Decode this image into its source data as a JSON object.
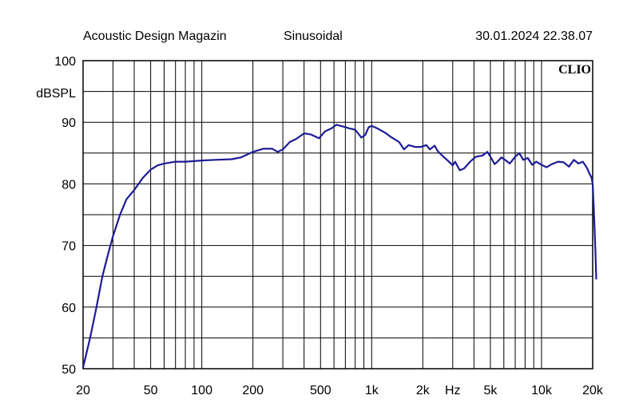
{
  "header": {
    "source": "Acoustic Design Magazin",
    "mode": "Sinusoidal",
    "datetime": "30.01.2024 22.38.07"
  },
  "brand": "CLIO",
  "chart_data": {
    "type": "line",
    "title": "",
    "xlabel": "Hz",
    "ylabel": "dBSPL",
    "xscale": "log",
    "xlim": [
      20,
      20000
    ],
    "ylim": [
      50,
      100
    ],
    "grid": true,
    "x_tick_labels": [
      {
        "value": 20,
        "label": "20"
      },
      {
        "value": 50,
        "label": "50"
      },
      {
        "value": 100,
        "label": "100"
      },
      {
        "value": 200,
        "label": "200"
      },
      {
        "value": 500,
        "label": "500"
      },
      {
        "value": 1000,
        "label": "1k"
      },
      {
        "value": 2000,
        "label": "2k"
      },
      {
        "value": 5000,
        "label": "5k"
      },
      {
        "value": 10000,
        "label": "10k"
      },
      {
        "value": 20000,
        "label": "20k"
      }
    ],
    "y_tick_labels": [
      {
        "value": 100,
        "label": "100"
      },
      {
        "value": 90,
        "label": "90"
      },
      {
        "value": 80,
        "label": "80"
      },
      {
        "value": 70,
        "label": "70"
      },
      {
        "value": 60,
        "label": "60"
      },
      {
        "value": 50,
        "label": "50"
      }
    ],
    "series": [
      {
        "color": "#1c1c96",
        "points": [
          [
            20,
            50.2
          ],
          [
            22,
            55
          ],
          [
            24,
            60
          ],
          [
            26,
            65
          ],
          [
            28,
            68.5
          ],
          [
            30,
            71.5
          ],
          [
            33,
            75
          ],
          [
            36,
            77.5
          ],
          [
            40,
            79
          ],
          [
            45,
            81
          ],
          [
            50,
            82.3
          ],
          [
            55,
            83
          ],
          [
            60,
            83.3
          ],
          [
            70,
            83.6
          ],
          [
            80,
            83.6
          ],
          [
            100,
            83.8
          ],
          [
            120,
            83.9
          ],
          [
            150,
            84
          ],
          [
            170,
            84.3
          ],
          [
            200,
            85.2
          ],
          [
            230,
            85.7
          ],
          [
            260,
            85.7
          ],
          [
            280,
            85.2
          ],
          [
            300,
            85.6
          ],
          [
            330,
            86.8
          ],
          [
            360,
            87.3
          ],
          [
            400,
            88.2
          ],
          [
            440,
            88
          ],
          [
            490,
            87.4
          ],
          [
            530,
            88.5
          ],
          [
            580,
            89
          ],
          [
            620,
            89.6
          ],
          [
            680,
            89.3
          ],
          [
            740,
            89
          ],
          [
            800,
            88.8
          ],
          [
            870,
            87.5
          ],
          [
            920,
            88
          ],
          [
            960,
            89.2
          ],
          [
            1000,
            89.4
          ],
          [
            1080,
            89
          ],
          [
            1200,
            88.3
          ],
          [
            1300,
            87.6
          ],
          [
            1450,
            86.8
          ],
          [
            1550,
            85.6
          ],
          [
            1650,
            86.3
          ],
          [
            1800,
            86
          ],
          [
            1950,
            86
          ],
          [
            2100,
            86.3
          ],
          [
            2200,
            85.6
          ],
          [
            2350,
            86.2
          ],
          [
            2450,
            85.3
          ],
          [
            2600,
            84.6
          ],
          [
            2800,
            83.8
          ],
          [
            3000,
            83
          ],
          [
            3100,
            83.6
          ],
          [
            3300,
            82.2
          ],
          [
            3500,
            82.5
          ],
          [
            3800,
            83.6
          ],
          [
            4100,
            84.4
          ],
          [
            4500,
            84.6
          ],
          [
            4800,
            85.2
          ],
          [
            5000,
            84.4
          ],
          [
            5300,
            83.2
          ],
          [
            5500,
            83.6
          ],
          [
            5800,
            84.3
          ],
          [
            6100,
            83.9
          ],
          [
            6500,
            83.3
          ],
          [
            7000,
            84.4
          ],
          [
            7400,
            85
          ],
          [
            7800,
            83.9
          ],
          [
            8300,
            84.2
          ],
          [
            8800,
            83.1
          ],
          [
            9300,
            83.6
          ],
          [
            10000,
            83.1
          ],
          [
            10700,
            82.7
          ],
          [
            11500,
            83.2
          ],
          [
            12500,
            83.6
          ],
          [
            13500,
            83.5
          ],
          [
            14500,
            82.8
          ],
          [
            15500,
            83.9
          ],
          [
            16500,
            83.3
          ],
          [
            17500,
            83.6
          ],
          [
            18500,
            82.6
          ],
          [
            19200,
            81.6
          ],
          [
            19700,
            81
          ],
          [
            20000,
            80
          ],
          [
            20300,
            76
          ],
          [
            20700,
            70
          ],
          [
            21000,
            64.5
          ]
        ]
      }
    ]
  }
}
